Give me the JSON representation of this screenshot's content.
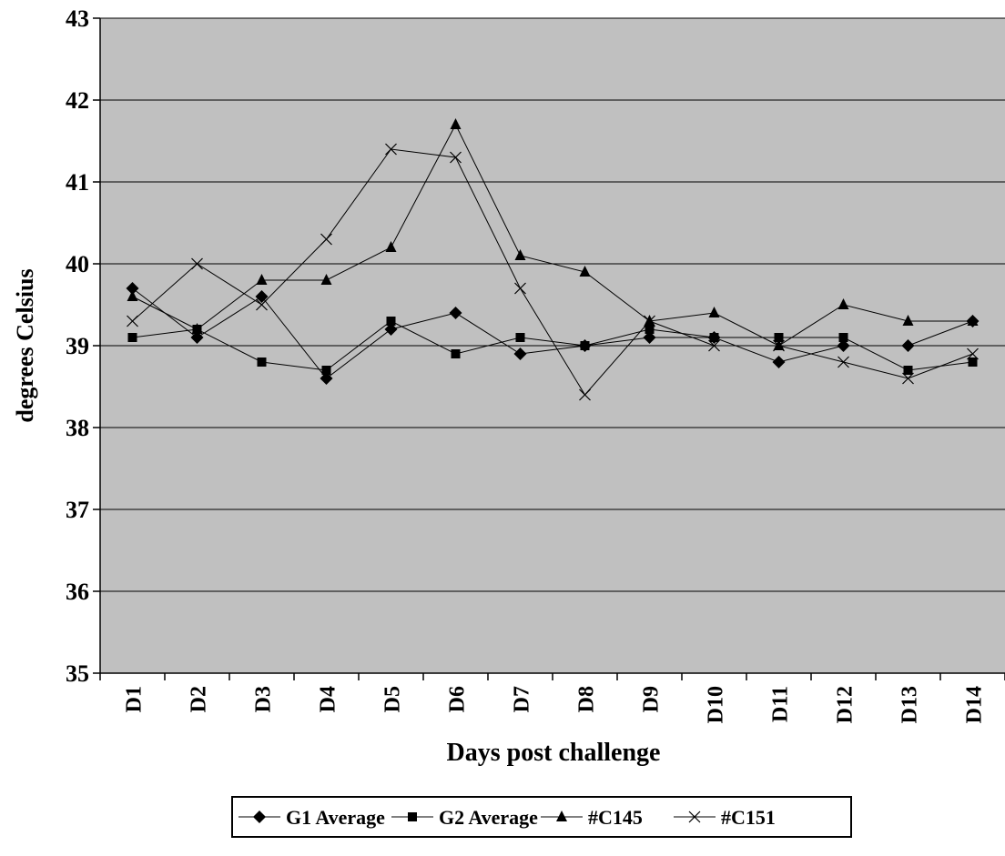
{
  "chart_data": {
    "type": "line",
    "title": "",
    "xlabel": "Days post challenge",
    "ylabel": "degrees Celsius",
    "categories": [
      "D1",
      "D2",
      "D3",
      "D4",
      "D5",
      "D6",
      "D7",
      "D8",
      "D9",
      "D10",
      "D11",
      "D12",
      "D13",
      "D14"
    ],
    "ylim": [
      35,
      43
    ],
    "yticks": [
      "35",
      "36",
      "37",
      "38",
      "39",
      "40",
      "41",
      "42",
      "43"
    ],
    "grid": true,
    "plot_background": "#c0c0c0",
    "legend_position": "bottom",
    "series": [
      {
        "name": "G1 Average",
        "marker": "diamond",
        "values": [
          39.7,
          39.1,
          39.6,
          38.6,
          39.2,
          39.4,
          38.9,
          39.0,
          39.1,
          39.1,
          38.8,
          39.0,
          39.0,
          39.3
        ]
      },
      {
        "name": "G2 Average",
        "marker": "square",
        "values": [
          39.1,
          39.2,
          38.8,
          38.7,
          39.3,
          38.9,
          39.1,
          39.0,
          39.2,
          39.1,
          39.1,
          39.1,
          38.7,
          38.8
        ]
      },
      {
        "name": "#C145",
        "marker": "triangle",
        "values": [
          39.6,
          39.2,
          39.8,
          39.8,
          40.2,
          41.7,
          40.1,
          39.9,
          39.3,
          39.4,
          39.0,
          39.5,
          39.3,
          39.3
        ]
      },
      {
        "name": "#C151",
        "marker": "x",
        "values": [
          39.3,
          40.0,
          39.5,
          40.3,
          41.4,
          41.3,
          39.7,
          38.4,
          39.3,
          39.0,
          39.0,
          38.8,
          38.6,
          38.9
        ]
      }
    ]
  }
}
